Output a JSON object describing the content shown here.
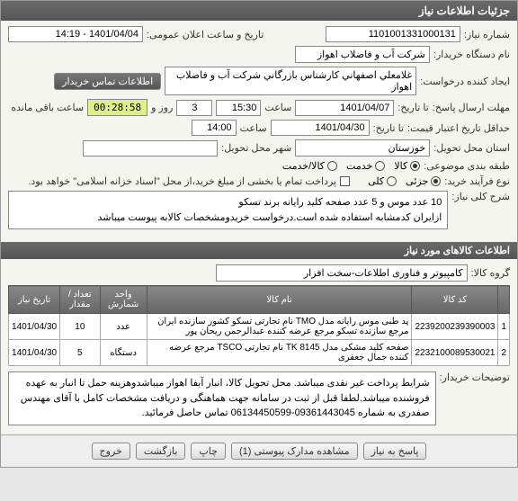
{
  "header": {
    "title": "جزئیات اطلاعات نیاز"
  },
  "fields": {
    "need_no_lbl": "شماره نیاز:",
    "need_no": "1101001331000131",
    "pub_time_lbl": "تاریخ و ساعت اعلان عمومی:",
    "pub_time": "1401/04/04 - 14:19",
    "org_lbl": "نام دستگاه خریدار:",
    "org": "شرکت آب و فاضلاب اهواز",
    "creator_lbl": "ایجاد کننده درخواست:",
    "creator": "غلامعلي اصفهاني کارشناس بازرگاني شرکت آب و فاضلاب اهواز",
    "contact_btn": "اطلاعات تماس خریدار",
    "deadline_lbl": "مهلت ارسال پاسخ:",
    "deadline_to_lbl": "تا تاریخ:",
    "deadline_date": "1401/04/07",
    "time_lbl": "ساعت",
    "deadline_time": "15:30",
    "days_left": "3",
    "days_lbl": "روز و",
    "countdown": "00:28:58",
    "remain_lbl": "ساعت باقی مانده",
    "validity_lbl": "حداقل تاریخ اعتبار قیمت:",
    "validity_to_lbl": "تا تاریخ:",
    "validity_date": "1401/04/30",
    "validity_time": "14:00",
    "province_lbl": "استان محل تحویل:",
    "province": "خوزستان",
    "city_lbl": "شهر محل تحویل:",
    "city": "",
    "subject_type_lbl": "طبقه بندی موضوعی:",
    "opt_goods": "کالا",
    "opt_service": "خدمت",
    "opt_both": "کالا/خدمت",
    "buy_type_lbl": "نوع فرآیند خرید:",
    "opt_partial": "جزئی",
    "opt_full": "کلی",
    "pay_note": "پرداخت تمام یا بخشی از مبلغ خرید،از محل \"اسناد خزانه اسلامی\" خواهد بود.",
    "desc_lbl": "شرح کلی نیاز:",
    "desc": "10 عدد موس و 5 عدد صفحه کلید رایانه برند تسکو\nازایران کدمشابه استفاده شده است.درخواست خریدومشخصات کالابه پیوست میباشد",
    "items_header": "اطلاعات کالاهای مورد نیاز",
    "group_lbl": "گروه کالا:",
    "group": "کامپیوتر و فناوری اطلاعات-سخت افزار",
    "buyer_note_lbl": "توضیحات خریدار:",
    "buyer_note": "شرایط پرداخت غیر نقدی میباشد. محل تحویل کالا، انبار آبفا اهواز میباشدوهزینه حمل تا انبار به عهده فروشنده میباشد.لطفا قبل از ثبت در سامانه جهت هماهنگی و دریافت مشخصات کامل با آقای مهندس صفدری به شماره 09361443045-06134450599 تماس حاصل فرمائید."
  },
  "table": {
    "cols": [
      "",
      "کد کالا",
      "نام کالا",
      "واحد شمارش",
      "تعداد / مقدار",
      "تاریخ نیاز"
    ],
    "rows": [
      [
        "1",
        "2239200239390003",
        "پد طبی موس رایانه مدل TMO نام تجارتی تسکو کشور سازنده ایران مرجع سازنده تسکو مرجع عرضه کننده عبدالرحمن ریحان پور",
        "عدد",
        "10",
        "1401/04/30"
      ],
      [
        "2",
        "2232100089530021",
        "صفحه کلید مشکی مدل TK 8145 نام تجارتی TSCO مرجع عرضه کننده جمال جعفری",
        "دستگاه",
        "5",
        "1401/04/30"
      ]
    ]
  },
  "footer": {
    "btn_reply": "پاسخ به نیاز",
    "btn_docs": "مشاهده مدارک پیوستی (1)",
    "btn_print": "چاپ",
    "btn_back": "بازگشت",
    "btn_exit": "خروج"
  },
  "colors": {
    "header_bg": "#5a5a5a",
    "timer_bg": "#dff08a"
  }
}
